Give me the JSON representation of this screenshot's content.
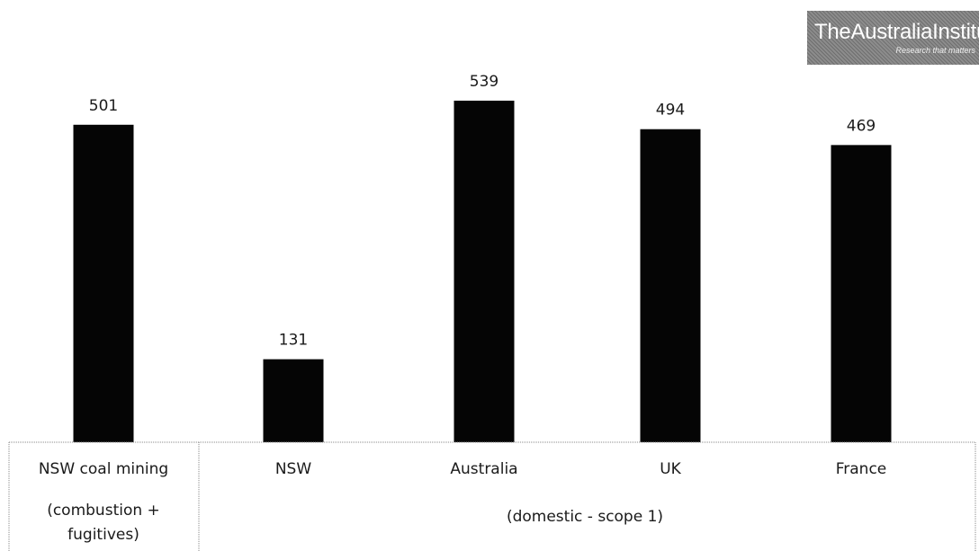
{
  "logo": {
    "text": "TheAustraliaInstitute",
    "tagline": "Research that matters"
  },
  "chart_data": {
    "type": "bar",
    "categories": [
      "NSW coal mining",
      "NSW",
      "Australia",
      "UK",
      "France"
    ],
    "values": [
      501,
      131,
      539,
      494,
      469
    ],
    "data_labels": [
      "501",
      "131",
      "539",
      "494",
      "469"
    ],
    "category_sublabel": {
      "NSW coal mining": [
        "(combustion +",
        "fugitives)"
      ]
    },
    "group_label": {
      "text": "(domestic - scope 1)",
      "applies_to": [
        "NSW",
        "Australia",
        "UK",
        "France"
      ]
    },
    "title": "",
    "xlabel": "",
    "ylabel": "",
    "ylim": [
      0,
      539
    ],
    "grid": false,
    "legend": "none",
    "colors": {
      "bar": "#050505",
      "frame": "#8a8a8a"
    }
  }
}
